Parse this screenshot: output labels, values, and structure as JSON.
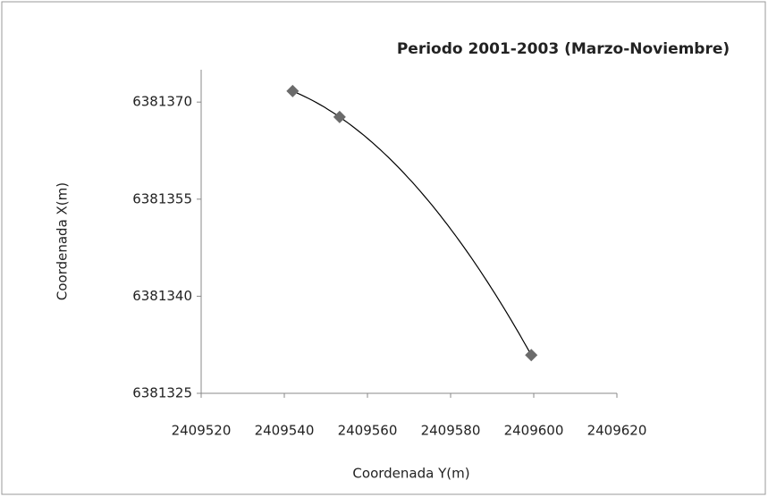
{
  "chart_data": {
    "type": "scatter",
    "title": "Periodo 2001-2003  (Marzo-Noviembre)",
    "x_label": "Coordenada Y(m)",
    "y_label": "Coordenada X(m)",
    "x": [
      2409542,
      2409553.3,
      2409599.4
    ],
    "series": [
      {
        "name": "Periodo 2001-2003",
        "color": "#6b6b6b",
        "values": [
          6381371.7,
          6381367.7,
          6381330.9
        ]
      }
    ],
    "xlim": [
      2409520,
      2409620
    ],
    "xticks": [
      2409520,
      2409540,
      2409560,
      2409580,
      2409600,
      2409620
    ],
    "ylim": [
      6381325,
      6381375
    ],
    "yticks": [
      6381325,
      6381340,
      6381355,
      6381370
    ],
    "trendline": true,
    "grid": false
  }
}
